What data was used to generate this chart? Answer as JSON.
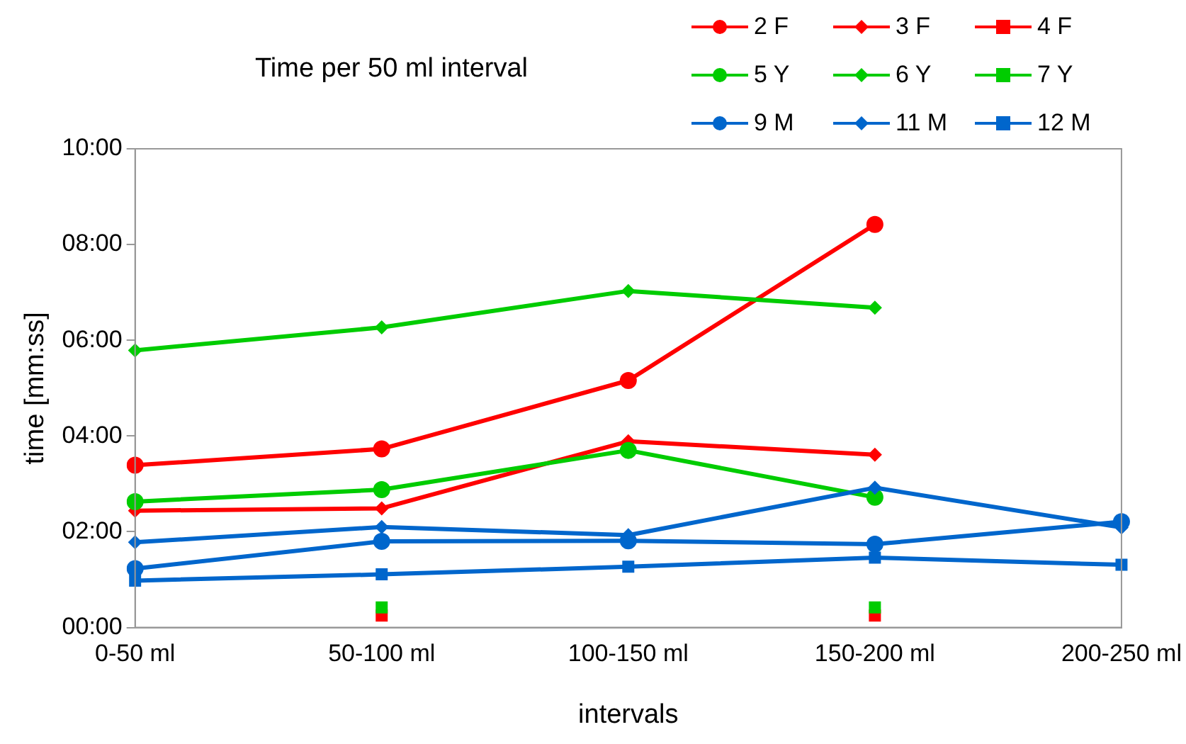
{
  "chart_data": {
    "type": "line",
    "title": "Time per 50 ml interval",
    "xlabel": "intervals",
    "ylabel": "time [mm:ss]",
    "categories": [
      "0-50 ml",
      "50-100 ml",
      "100-150 ml",
      "150-200 ml",
      "200-250 ml"
    ],
    "ylim": [
      0,
      10
    ],
    "yticks": [
      {
        "value": 0,
        "label": "00:00"
      },
      {
        "value": 2,
        "label": "02:00"
      },
      {
        "value": 4,
        "label": "04:00"
      },
      {
        "value": 6,
        "label": "06:00"
      },
      {
        "value": 8,
        "label": "08:00"
      },
      {
        "value": 10,
        "label": "10:00"
      }
    ],
    "grid": false,
    "legend": "top right",
    "series": [
      {
        "name": "2 F",
        "color": "#ff0000",
        "marker": "circle",
        "values": [
          3.39,
          3.73,
          5.16,
          8.42,
          null
        ]
      },
      {
        "name": "3 F",
        "color": "#ff0000",
        "marker": "diamond",
        "values": [
          2.44,
          2.49,
          3.89,
          3.61,
          null
        ]
      },
      {
        "name": "4 F",
        "type": "scatter",
        "color": "#ff0000",
        "marker": "square",
        "values": [
          null,
          0.25,
          null,
          0.25,
          null
        ]
      },
      {
        "name": "5 Y",
        "color": "#00cc00",
        "marker": "circle",
        "values": [
          2.63,
          2.88,
          3.7,
          2.72,
          null
        ]
      },
      {
        "name": "6 Y",
        "color": "#00cc00",
        "marker": "diamond",
        "values": [
          5.79,
          6.27,
          7.03,
          6.68,
          null
        ]
      },
      {
        "name": "7 Y",
        "type": "scatter",
        "color": "#00cc00",
        "marker": "square",
        "values": [
          null,
          0.42,
          null,
          0.42,
          null
        ]
      },
      {
        "name": "9 M",
        "color": "#0066cc",
        "marker": "circle",
        "values": [
          1.23,
          1.8,
          1.81,
          1.74,
          2.21
        ]
      },
      {
        "name": "11 M",
        "color": "#0066cc",
        "marker": "diamond",
        "values": [
          1.78,
          2.1,
          1.93,
          2.92,
          2.09
        ]
      },
      {
        "name": "12 M",
        "color": "#0066cc",
        "marker": "square",
        "values": [
          0.98,
          1.11,
          1.27,
          1.46,
          1.31
        ]
      }
    ]
  }
}
